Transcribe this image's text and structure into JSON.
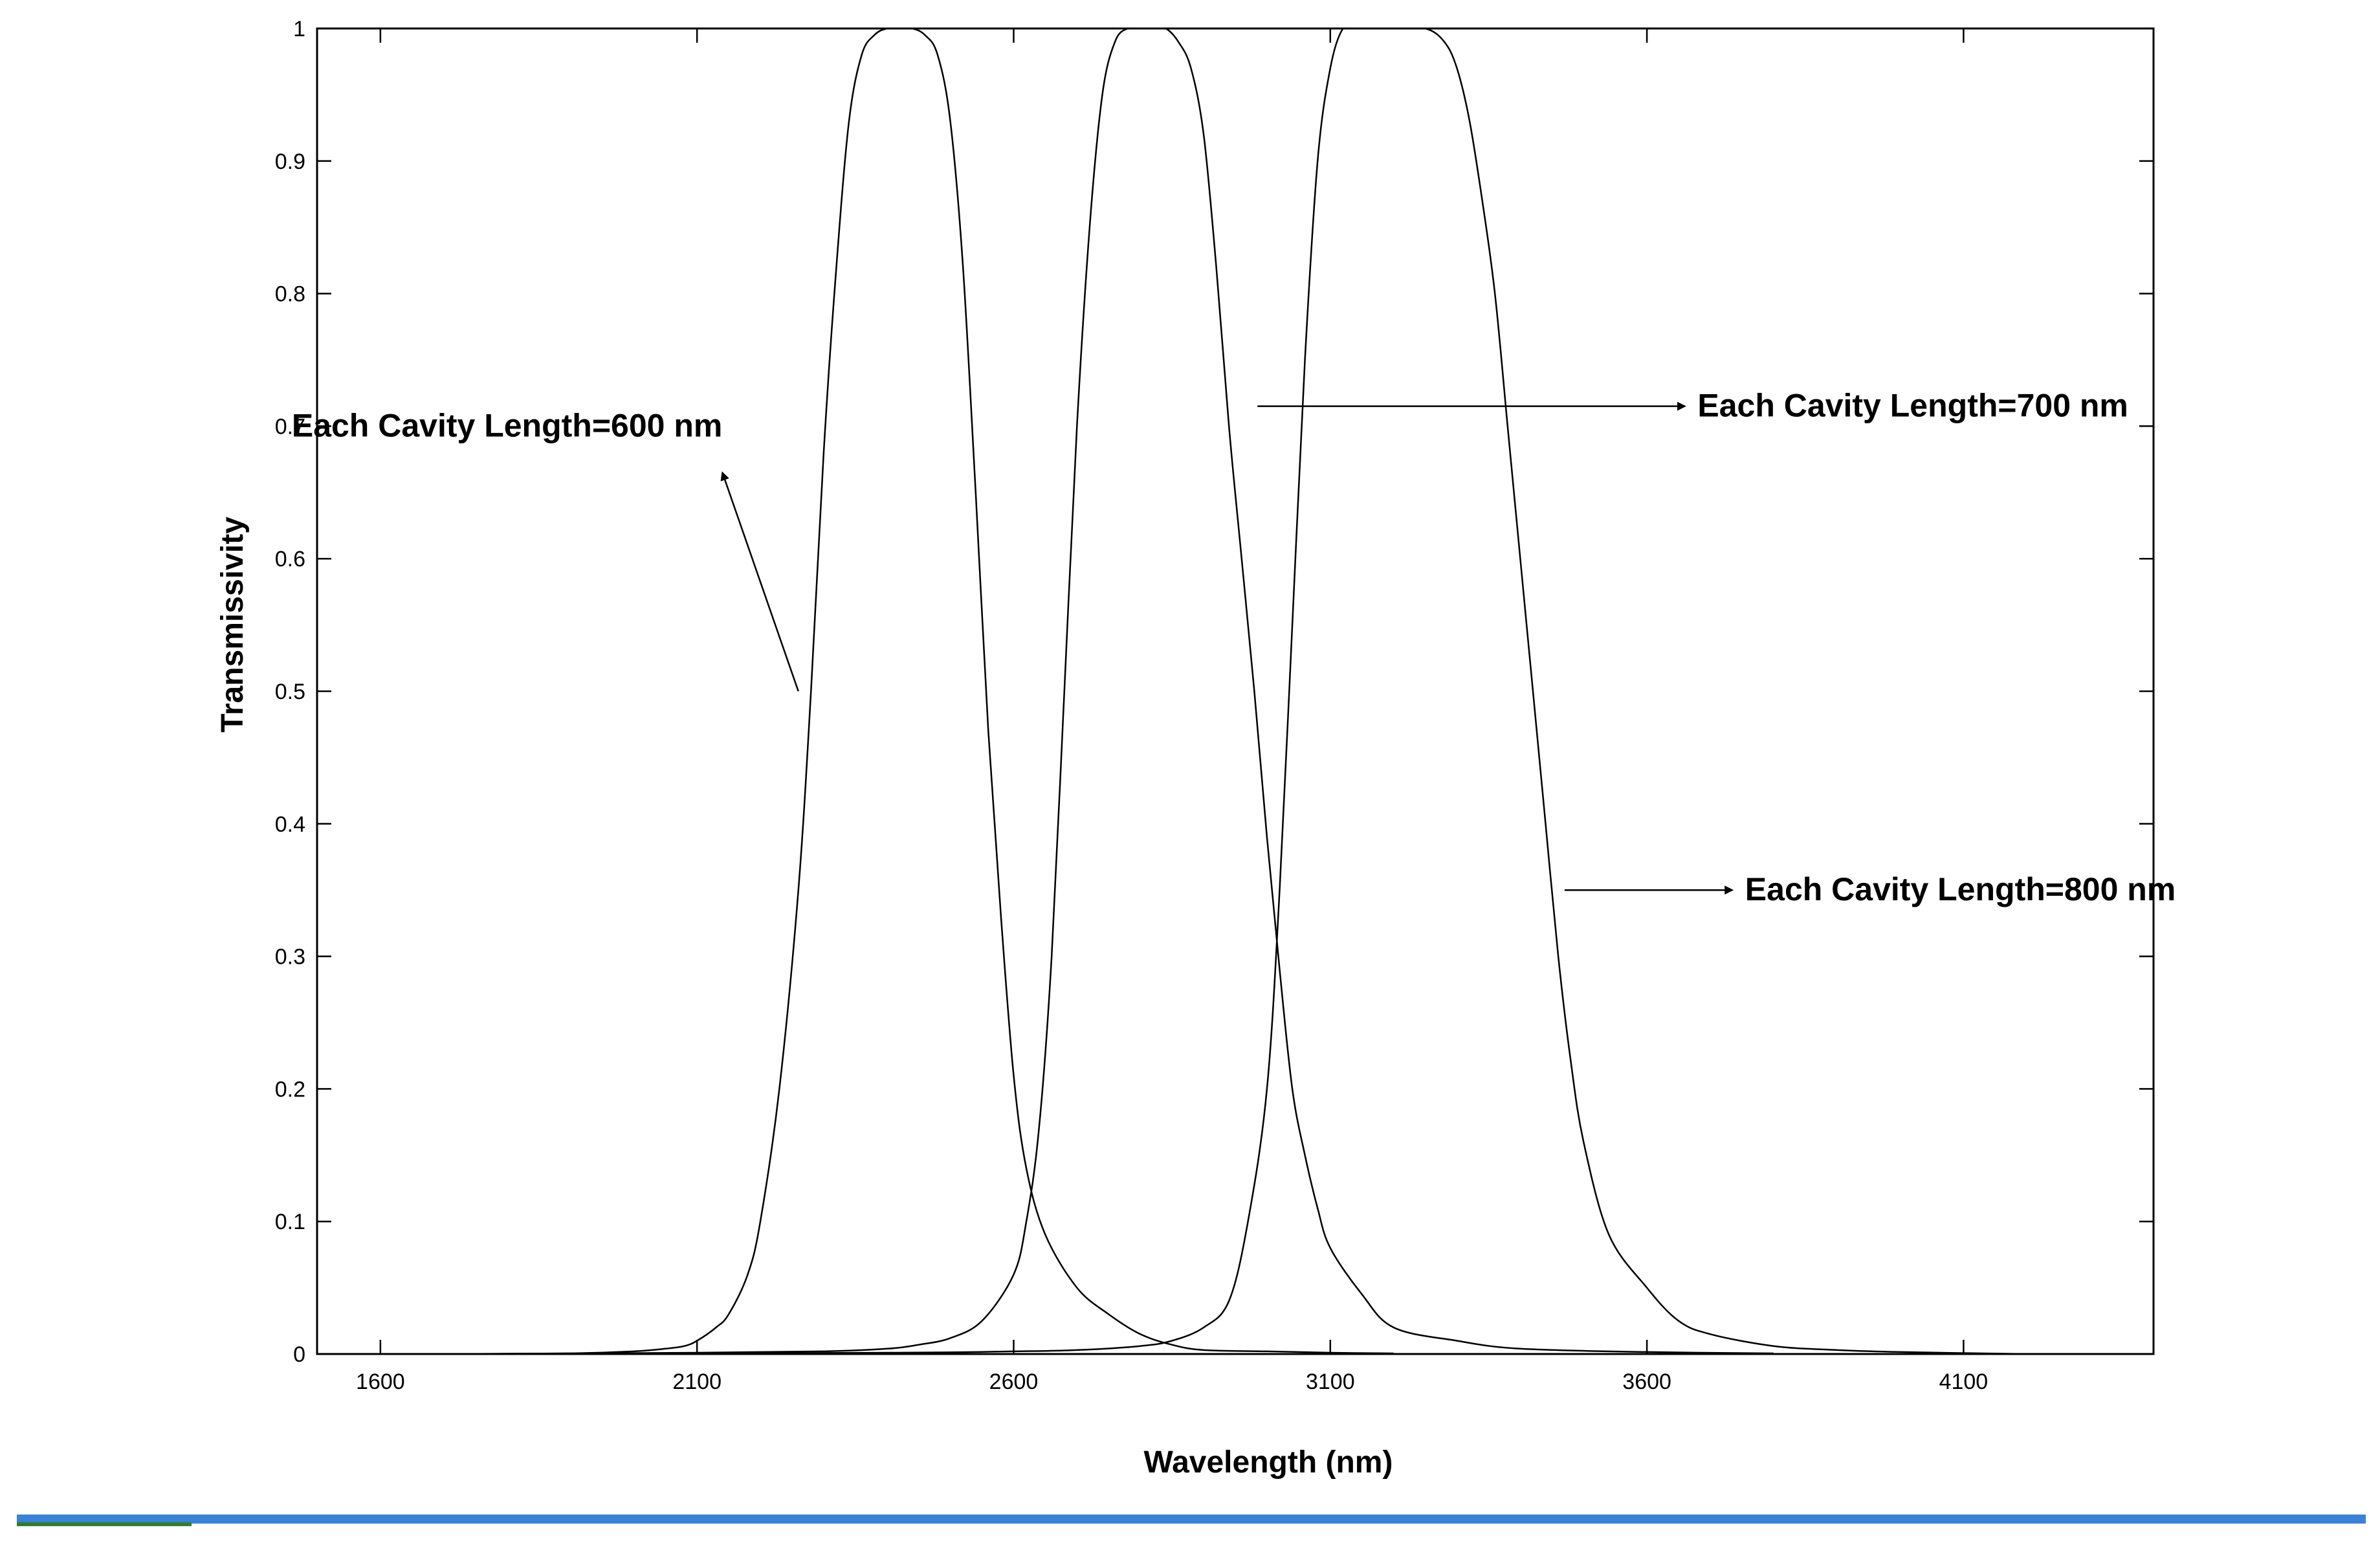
{
  "chart_data": {
    "type": "line",
    "xlabel": "Wavelength (nm)",
    "ylabel": "Transmissivity",
    "xlim": [
      1500,
      4400
    ],
    "ylim": [
      0,
      1
    ],
    "x_ticks": [
      1600,
      2100,
      2600,
      3100,
      3600,
      4100
    ],
    "y_ticks": [
      0,
      0.1,
      0.2,
      0.3,
      0.4,
      0.5,
      0.6,
      0.7,
      0.8,
      0.9,
      1
    ],
    "y_tick_labels": [
      "0",
      "0.1",
      "0.2",
      "0.3",
      "0.4",
      "0.5",
      "0.6",
      "0.7",
      "0.8",
      "0.9",
      "1"
    ],
    "grid": false,
    "series": [
      {
        "name": "Each Cavity Length=600 nm",
        "x": [
          1700,
          1900,
          2000,
          2050,
          2080,
          2100,
          2130,
          2150,
          2180,
          2200,
          2230,
          2260,
          2280,
          2300,
          2320,
          2340,
          2360,
          2380,
          2400,
          2420,
          2440,
          2460,
          2480,
          2500,
          2520,
          2540,
          2560,
          2580,
          2600,
          2620,
          2650,
          2700,
          2750,
          2800,
          2850,
          2900,
          3000,
          3100,
          3200
        ],
        "y": [
          0,
          0.0005,
          0.002,
          0.004,
          0.006,
          0.01,
          0.02,
          0.03,
          0.06,
          0.1,
          0.2,
          0.35,
          0.5,
          0.68,
          0.82,
          0.93,
          0.98,
          0.995,
          1,
          1,
          1,
          0.995,
          0.98,
          0.93,
          0.82,
          0.65,
          0.47,
          0.33,
          0.21,
          0.14,
          0.09,
          0.05,
          0.03,
          0.015,
          0.007,
          0.003,
          0.002,
          0.001,
          0.0005
        ]
      },
      {
        "name": "Each Cavity Length=700 nm",
        "x": [
          1700,
          2100,
          2300,
          2400,
          2450,
          2500,
          2550,
          2600,
          2620,
          2640,
          2660,
          2680,
          2700,
          2720,
          2740,
          2760,
          2780,
          2800,
          2820,
          2840,
          2860,
          2880,
          2900,
          2920,
          2940,
          2960,
          2980,
          3000,
          3020,
          3040,
          3060,
          3080,
          3100,
          3150,
          3200,
          3300,
          3400,
          3600,
          3800
        ],
        "y": [
          0,
          0.001,
          0.002,
          0.004,
          0.007,
          0.012,
          0.025,
          0.06,
          0.1,
          0.17,
          0.3,
          0.5,
          0.7,
          0.85,
          0.95,
          0.99,
          1,
          1,
          1,
          1,
          0.99,
          0.97,
          0.92,
          0.82,
          0.7,
          0.6,
          0.5,
          0.39,
          0.29,
          0.2,
          0.15,
          0.11,
          0.08,
          0.045,
          0.02,
          0.01,
          0.004,
          0.0015,
          0.0005
        ]
      },
      {
        "name": "Each Cavity Length=800 nm",
        "x": [
          1700,
          2400,
          2600,
          2700,
          2800,
          2850,
          2900,
          2940,
          2970,
          3000,
          3020,
          3040,
          3060,
          3080,
          3100,
          3120,
          3140,
          3160,
          3200,
          3250,
          3280,
          3300,
          3320,
          3340,
          3360,
          3380,
          3400,
          3420,
          3440,
          3460,
          3480,
          3500,
          3540,
          3600,
          3650,
          3700,
          3800,
          3900,
          4000,
          4200
        ],
        "y": [
          0,
          0.001,
          0.002,
          0.003,
          0.006,
          0.01,
          0.02,
          0.04,
          0.1,
          0.2,
          0.35,
          0.55,
          0.75,
          0.9,
          0.97,
          1,
          1,
          1,
          1,
          1,
          0.99,
          0.97,
          0.93,
          0.87,
          0.8,
          0.7,
          0.6,
          0.5,
          0.4,
          0.3,
          0.22,
          0.16,
          0.09,
          0.05,
          0.025,
          0.015,
          0.006,
          0.003,
          0.0015,
          0
        ]
      }
    ],
    "annotations": [
      {
        "text": "Each Cavity Length=600 nm",
        "points_to": {
          "x": 2260,
          "y": 0.5
        },
        "text_anchor": {
          "x": 2140,
          "y": 0.665
        },
        "text_at": {
          "x": 1460,
          "y": 0.7
        }
      },
      {
        "text": "Each Cavity Length=700 nm",
        "points_to": {
          "x": 2985,
          "y": 0.715
        },
        "text_anchor": {
          "x": 3660,
          "y": 0.715
        },
        "text_at": {
          "x": 3680,
          "y": 0.715
        }
      },
      {
        "text": "Each Cavity Length=800 nm",
        "points_to": {
          "x": 3470,
          "y": 0.35
        },
        "text_anchor": {
          "x": 3735,
          "y": 0.35
        },
        "text_at": {
          "x": 3755,
          "y": 0.35
        }
      }
    ]
  }
}
